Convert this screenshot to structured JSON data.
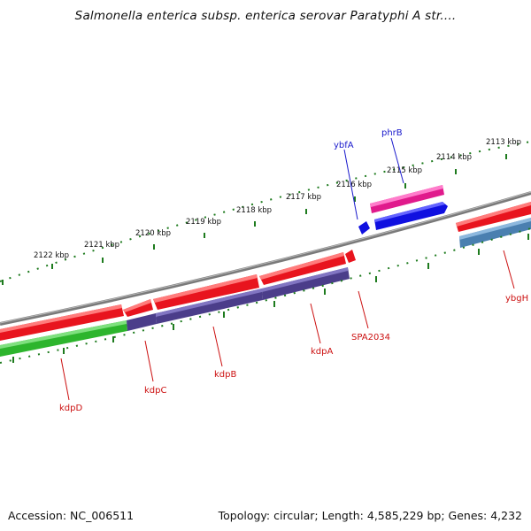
{
  "title": "Salmonella enterica subsp. enterica serovar Paratyphi A str....",
  "footer": {
    "accession": "Accession: NC_006511",
    "summary": "Topology: circular; Length: 4,585,229 bp; Genes: 4,232"
  },
  "scale": {
    "unit": "kbp",
    "labels": [
      "2122 kbp",
      "2121 kbp",
      "2120 kbp",
      "2119 kbp",
      "2118 kbp",
      "2117 kbp",
      "2116 kbp",
      "2115 kbp",
      "2114 kbp",
      "2113 kbp"
    ]
  },
  "genes": {
    "forward_labels": [
      "ybfA",
      "phrB"
    ],
    "reverse_labels": [
      "kdpD",
      "kdpC",
      "kdpB",
      "kdpA",
      "SPA2034",
      "ybgH"
    ]
  },
  "colors": {
    "forward_label": "#1a1acc",
    "reverse_label": "#cc1111",
    "ticks": "#1e7b1e",
    "backbone": "#808080",
    "cds_red": "#e8141e",
    "cds_pink": "#e01a8c",
    "cds_blue": "#1010e0",
    "rna_purple": "#4b3d8a",
    "rna_green": "#2db52d",
    "rna_steel": "#4a7fb0"
  }
}
